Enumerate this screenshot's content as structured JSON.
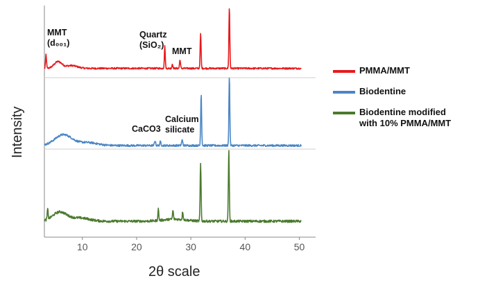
{
  "chart_data": {
    "type": "line",
    "xlabel": "2θ scale",
    "ylabel": "Intensity",
    "xlim": [
      3,
      51
    ],
    "xticks": [
      10,
      20,
      30,
      40,
      50
    ],
    "grid": false,
    "legend_position": "right",
    "series": [
      {
        "name": "PMMA/MMT",
        "color": "#e8191c",
        "baseline": 0.3,
        "noise": 0.15,
        "humps": [
          [
            5.5,
            1.2,
            1.0
          ],
          [
            8.0,
            0.5,
            1.5
          ]
        ],
        "peaks": [
          [
            3.3,
            2.5,
            0.12
          ],
          [
            25.2,
            4.0,
            0.12
          ],
          [
            26.6,
            0.8,
            0.12
          ],
          [
            28.0,
            1.6,
            0.12
          ],
          [
            31.8,
            6.2,
            0.12
          ],
          [
            37.1,
            11.0,
            0.12
          ]
        ]
      },
      {
        "name": "Biodentine",
        "color": "#4a86c5",
        "baseline": 0.3,
        "noise": 0.2,
        "humps": [
          [
            6.5,
            2.2,
            2.2
          ],
          [
            11.0,
            0.6,
            2.5
          ]
        ],
        "peaks": [
          [
            23.4,
            1.0,
            0.15
          ],
          [
            24.4,
            0.8,
            0.15
          ],
          [
            28.4,
            1.1,
            0.15
          ],
          [
            31.9,
            10.5,
            0.12
          ],
          [
            37.1,
            14.0,
            0.12
          ]
        ]
      },
      {
        "name": "Biodentine modified with 10% PMMA/MMT",
        "color": "#4b7a2e",
        "baseline": 0.5,
        "noise": 0.3,
        "humps": [
          [
            5.8,
            2.2,
            1.8
          ],
          [
            9.5,
            0.8,
            2.5
          ],
          [
            27.0,
            0.5,
            3.0
          ]
        ],
        "peaks": [
          [
            3.6,
            2.5,
            0.12
          ],
          [
            24.0,
            2.8,
            0.12
          ],
          [
            26.7,
            2.2,
            0.12
          ],
          [
            28.5,
            2.0,
            0.12
          ],
          [
            31.8,
            14.0,
            0.12
          ],
          [
            37.0,
            17.5,
            0.12
          ]
        ]
      }
    ],
    "annotations": [
      {
        "lines": [
          "MMT",
          "(d₀₀₁)"
        ],
        "x": 3.3,
        "series": 0
      },
      {
        "lines": [
          "Quartz",
          "(SiO₂)"
        ],
        "x": 25.2,
        "series": 0
      },
      {
        "lines": [
          "MMT"
        ],
        "x": 28.0,
        "series": 0
      },
      {
        "lines": [
          "CaCO3"
        ],
        "x": 23.4,
        "series": 1
      },
      {
        "lines": [
          "Calcium",
          "silicate"
        ],
        "x": 28.4,
        "series": 1
      }
    ]
  },
  "legend": [
    {
      "label": "PMMA/MMT",
      "color": "#e8191c"
    },
    {
      "label": "Biodentine",
      "color": "#4a86c5"
    },
    {
      "label": "Biodentine modified",
      "label2": "with 10% PMMA/MMT",
      "color": "#4b7a2e"
    }
  ]
}
